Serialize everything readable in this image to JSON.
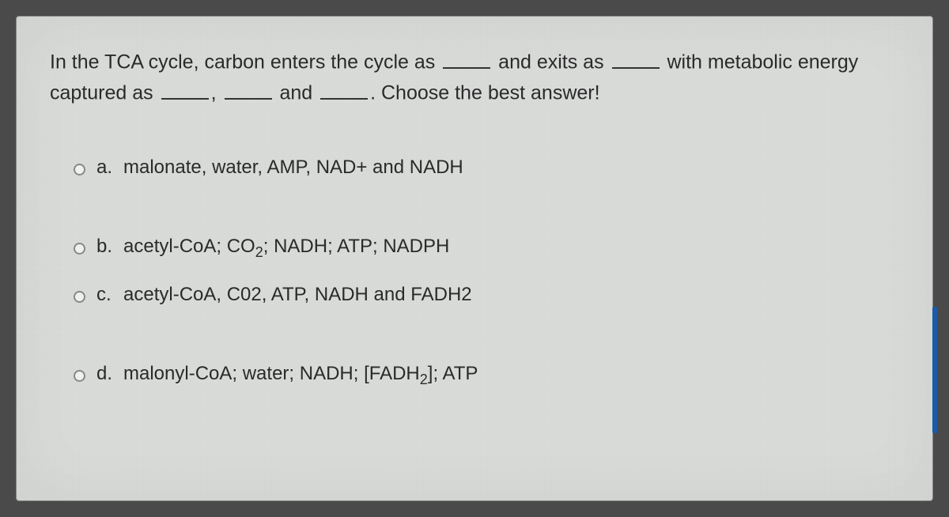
{
  "question": {
    "segments": [
      "In the TCA cycle, carbon enters the cycle as ",
      " and exits as ",
      " with metabolic energy captured as ",
      ", ",
      " and ",
      ". Choose the best answer!"
    ]
  },
  "options": {
    "a": {
      "letter": "a.",
      "text": "malonate, water, AMP, NAD+ and NADH"
    },
    "b": {
      "letter": "b.",
      "text_html": "acetyl-CoA; CO<sub>2</sub>; NADH; ATP; NADPH"
    },
    "c": {
      "letter": "c.",
      "text": "acetyl-CoA, C02, ATP, NADH and FADH2"
    },
    "d": {
      "letter": "d.",
      "text_html": "malonyl-CoA; water; NADH; [FADH<sub>2</sub>]; ATP"
    }
  },
  "style": {
    "card_bg": "#d9dbd9",
    "text_color": "#2a2a2a",
    "radio_border": "#888888",
    "question_fontsize": 25,
    "option_fontsize": 24
  }
}
